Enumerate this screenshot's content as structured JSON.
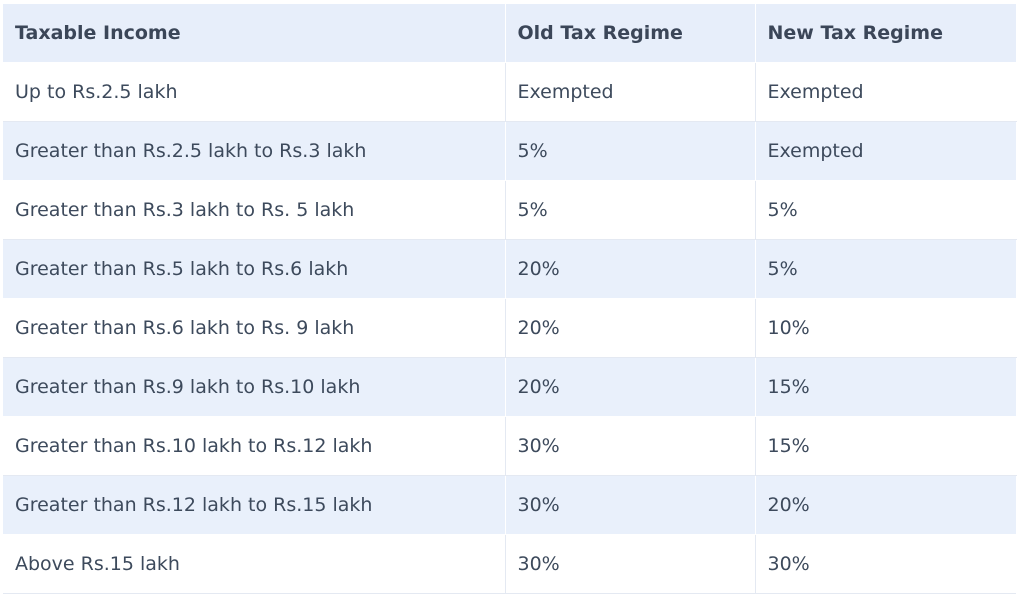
{
  "table": {
    "headers": [
      "Taxable Income",
      "Old Tax Regime",
      "New Tax Regime"
    ],
    "rows": [
      [
        "Up to Rs.2.5 lakh",
        "Exempted",
        "Exempted"
      ],
      [
        "Greater than Rs.2.5 lakh to Rs.3 lakh",
        "5%",
        "Exempted"
      ],
      [
        "Greater than Rs.3 lakh to Rs. 5 lakh",
        "5%",
        "5%"
      ],
      [
        "Greater than Rs.5 lakh to Rs.6 lakh",
        "20%",
        "5%"
      ],
      [
        "Greater than Rs.6 lakh to Rs. 9 lakh",
        "20%",
        "10%"
      ],
      [
        "Greater than Rs.9 lakh to Rs.10 lakh",
        "20%",
        "15%"
      ],
      [
        "Greater than Rs.10 lakh to Rs.12 lakh",
        "30%",
        "15%"
      ],
      [
        "Greater than Rs.12 lakh to Rs.15 lakh",
        "30%",
        "20%"
      ],
      [
        "Above Rs.15 lakh",
        "30%",
        "30%"
      ]
    ]
  },
  "colors": {
    "header_bg": "#e7eefa",
    "stripe_bg": "#e9f0fb",
    "text": "#3d4a5c"
  }
}
